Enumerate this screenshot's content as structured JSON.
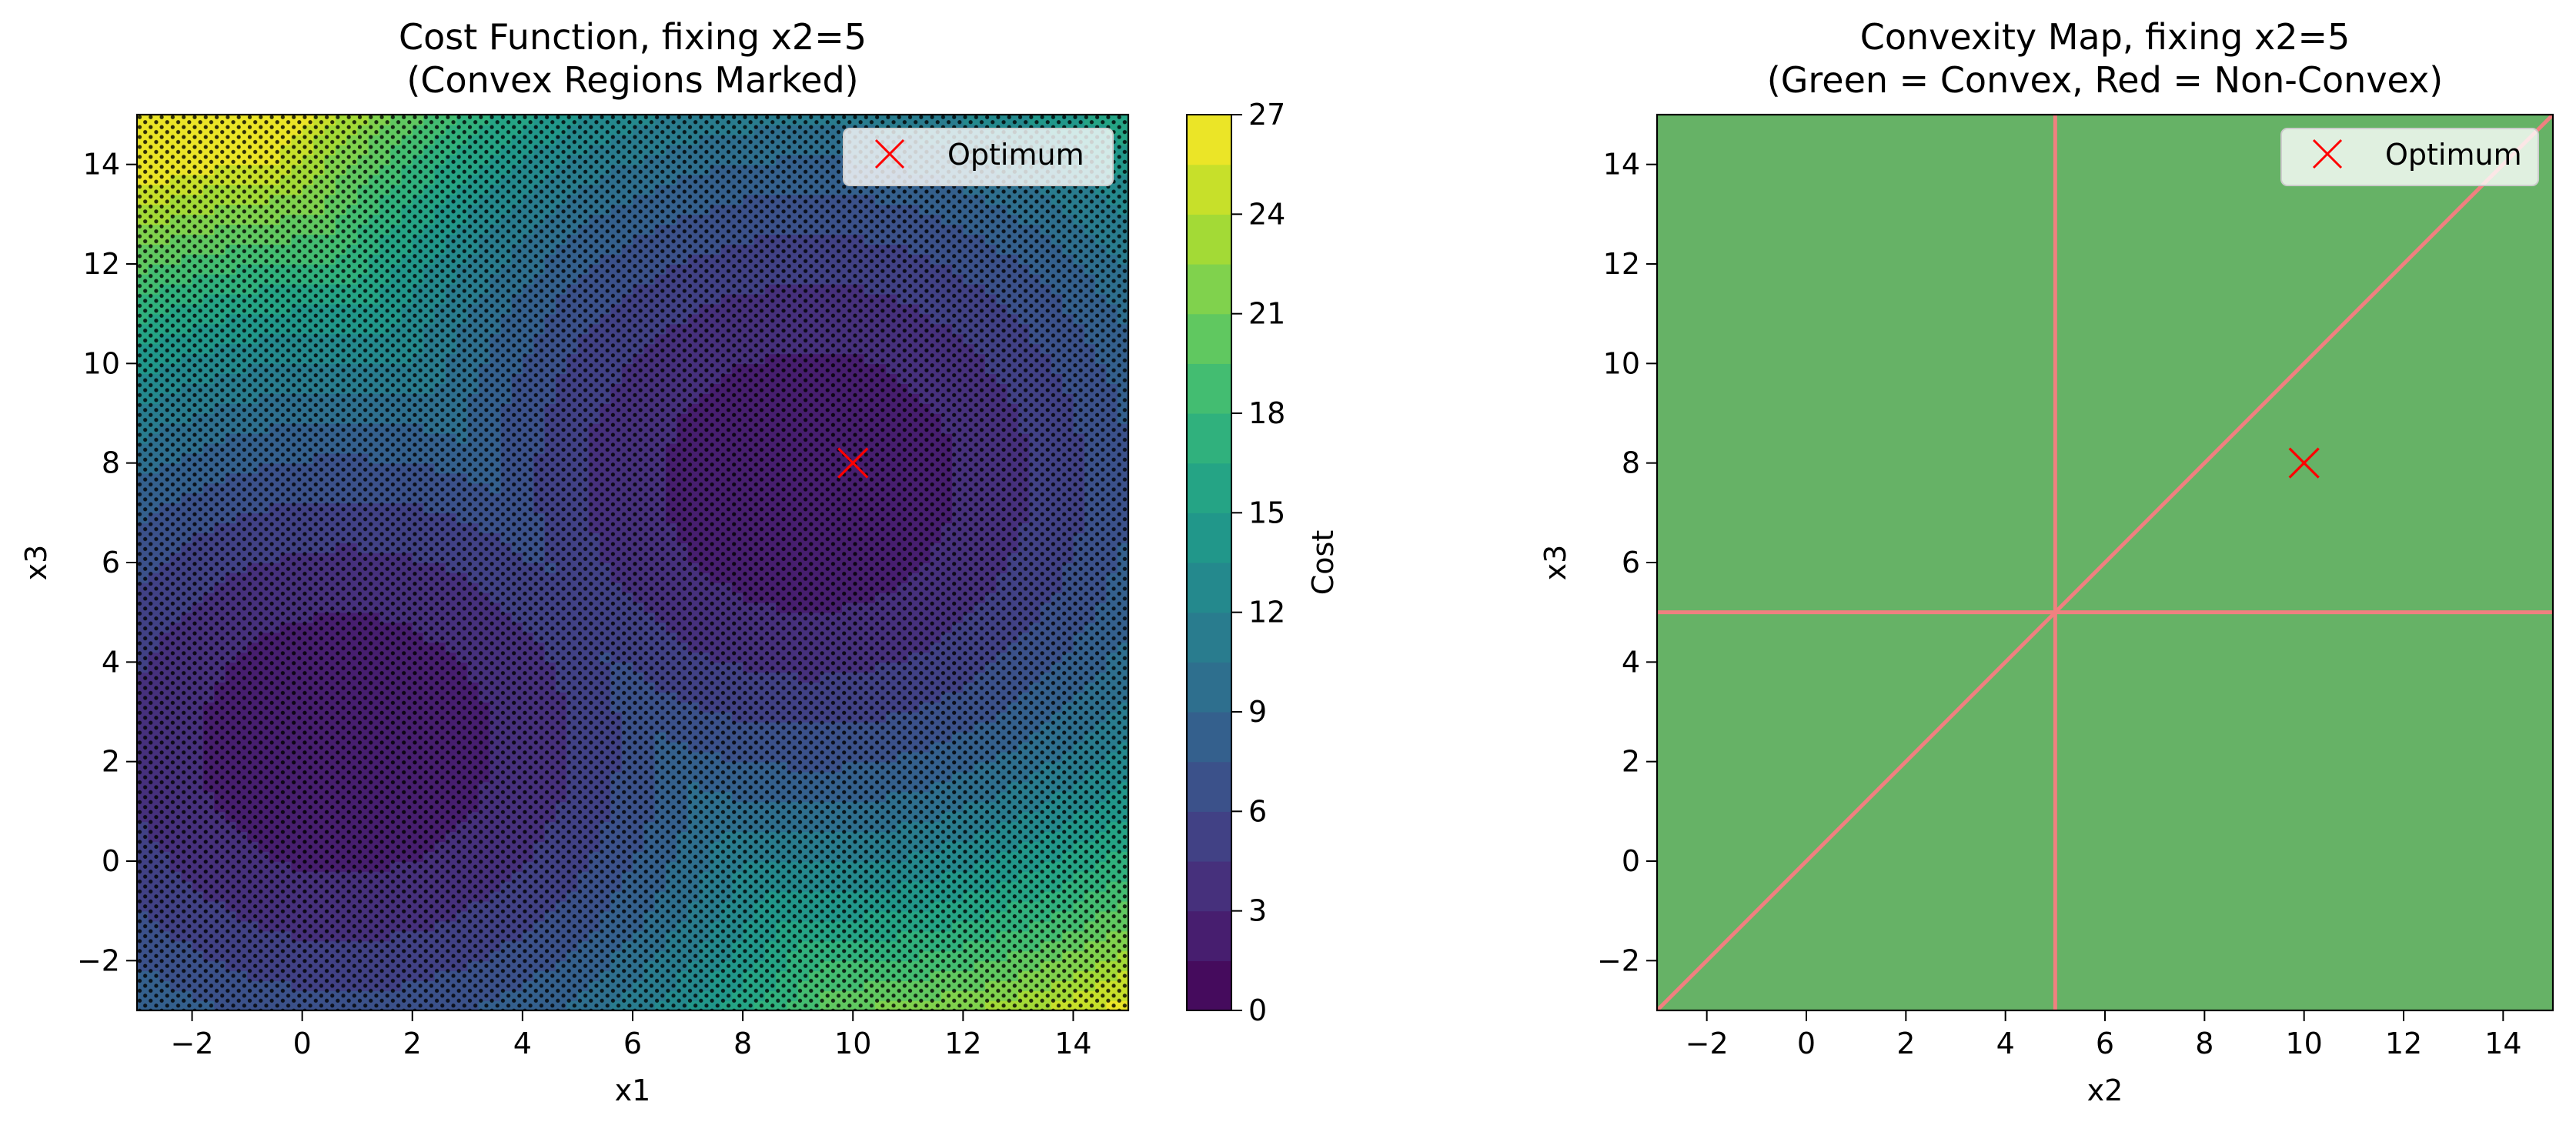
{
  "chart_data": [
    {
      "type": "heatmap",
      "title": "Cost Function, fixing x2=5",
      "subtitle": "(Convex Regions Marked)",
      "xlabel": "x1",
      "ylabel": "x3",
      "xlim": [
        -3,
        15
      ],
      "ylim": [
        -3,
        15
      ],
      "xticks": [
        -2,
        0,
        2,
        4,
        6,
        8,
        10,
        12,
        14
      ],
      "yticks": [
        -2,
        0,
        2,
        4,
        6,
        8,
        10,
        12,
        14
      ],
      "colorbar": {
        "label": "Cost",
        "range": [
          0,
          27
        ],
        "levels": 18,
        "ticks": [
          0,
          3,
          6,
          9,
          12,
          15,
          18,
          21,
          24,
          27
        ],
        "colormap": [
          "#440154",
          "#482878",
          "#3e4989",
          "#31688e",
          "#26828e",
          "#1f9e89",
          "#35b779",
          "#6ece58",
          "#b5de2b",
          "#fde725"
        ]
      },
      "minima": [
        {
          "x1": 0,
          "x3": 2,
          "cost": 0
        },
        {
          "x1": 10,
          "x3": 8,
          "cost": 0
        }
      ],
      "convex_markers": "black dots (convex regions)",
      "optimum": {
        "x1": 10,
        "x3": 8
      },
      "legend": {
        "label": "Optimum",
        "position": "top-right",
        "marker": "x",
        "color": "#ff0000"
      }
    },
    {
      "type": "heatmap",
      "title": "Convexity Map, fixing x2=5",
      "subtitle": "(Green = Convex, Red = Non-Convex)",
      "xlabel": "x2",
      "ylabel": "x3",
      "xlim": [
        -3,
        15
      ],
      "ylim": [
        -3,
        15
      ],
      "xticks": [
        -2,
        0,
        2,
        4,
        6,
        8,
        10,
        12,
        14
      ],
      "yticks": [
        -2,
        0,
        2,
        4,
        6,
        8,
        10,
        12,
        14
      ],
      "convex_color": "#66b266",
      "nonconvex_color": "#f08080",
      "nonconvex_lines": [
        {
          "kind": "vertical",
          "x2": 5
        },
        {
          "kind": "horizontal",
          "x3": 5
        },
        {
          "kind": "diagonal",
          "from": [
            -3,
            -3
          ],
          "to": [
            15,
            15
          ]
        }
      ],
      "optimum": {
        "x2": 10,
        "x3": 8
      },
      "legend": {
        "label": "Optimum",
        "position": "top-right",
        "marker": "x",
        "color": "#ff0000"
      }
    }
  ]
}
